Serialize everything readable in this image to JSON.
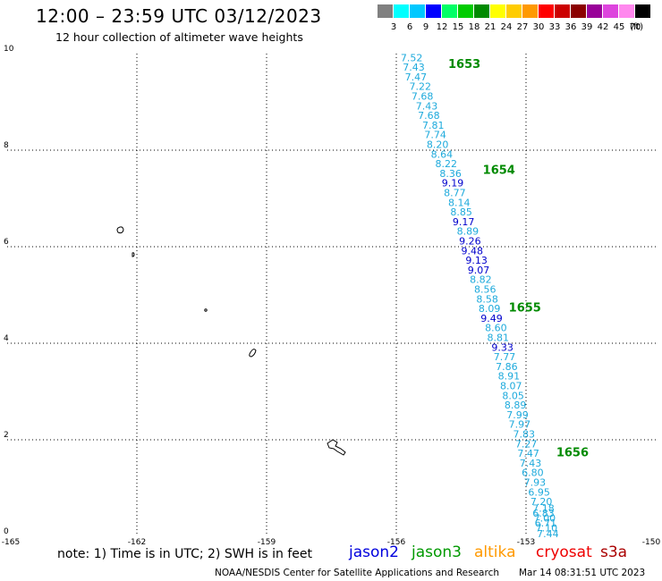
{
  "header": {
    "title": "12:00 – 23:59 UTC 03/12/2023",
    "subtitle": "12 hour collection of altimeter wave heights"
  },
  "legend": {
    "unit": "(ft)",
    "levels": [
      {
        "label": "3",
        "color": "#808080"
      },
      {
        "label": "6",
        "color": "#00ffff"
      },
      {
        "label": "9",
        "color": "#00c8ff"
      },
      {
        "label": "12",
        "color": "#0000ff"
      },
      {
        "label": "15",
        "color": "#00ff66"
      },
      {
        "label": "18",
        "color": "#00cc00"
      },
      {
        "label": "21",
        "color": "#008a00"
      },
      {
        "label": "24",
        "color": "#ffff00"
      },
      {
        "label": "27",
        "color": "#ffcc00"
      },
      {
        "label": "30",
        "color": "#ff9900"
      },
      {
        "label": "33",
        "color": "#ff0000"
      },
      {
        "label": "36",
        "color": "#cc0000"
      },
      {
        "label": "39",
        "color": "#8b0000"
      },
      {
        "label": "42",
        "color": "#990099"
      },
      {
        "label": "45",
        "color": "#dd44dd"
      },
      {
        "label": "70",
        "color": "#ff88ee"
      },
      {
        "label": "",
        "color": "#000000"
      }
    ]
  },
  "axes": {
    "lon_ticks": [
      "-165",
      "-162",
      "-159",
      "-156",
      "-153",
      "-150"
    ],
    "lat_ticks": [
      "10",
      "8",
      "6",
      "4",
      "2",
      "0"
    ],
    "lon_range": [
      -165,
      -150
    ],
    "lat_range": [
      0,
      10
    ]
  },
  "track": {
    "times": [
      {
        "label": "1653",
        "lon": -154.8,
        "lat": 9.8
      },
      {
        "label": "1654",
        "lon": -154.0,
        "lat": 7.6
      },
      {
        "label": "1655",
        "lon": -153.4,
        "lat": 4.75
      },
      {
        "label": "1656",
        "lon": -152.3,
        "lat": 1.75
      }
    ],
    "colors": {
      "c": "#1eaadc",
      "b": "#0000cc"
    },
    "points": [
      {
        "v": "7.52",
        "lon": -155.9,
        "lat": 9.92,
        "c": "c"
      },
      {
        "v": "7.43",
        "lon": -155.85,
        "lat": 9.72,
        "c": "c"
      },
      {
        "v": "7.47",
        "lon": -155.8,
        "lat": 9.52,
        "c": "c"
      },
      {
        "v": "7.22",
        "lon": -155.7,
        "lat": 9.32,
        "c": "c"
      },
      {
        "v": "7.68",
        "lon": -155.65,
        "lat": 9.12,
        "c": "c"
      },
      {
        "v": "7.43",
        "lon": -155.55,
        "lat": 8.92,
        "c": "c"
      },
      {
        "v": "7.68",
        "lon": -155.5,
        "lat": 8.72,
        "c": "c"
      },
      {
        "v": "7.81",
        "lon": -155.4,
        "lat": 8.52,
        "c": "c"
      },
      {
        "v": "7.74",
        "lon": -155.35,
        "lat": 8.32,
        "c": "c"
      },
      {
        "v": "8.20",
        "lon": -155.3,
        "lat": 8.12,
        "c": "c"
      },
      {
        "v": "8.64",
        "lon": -155.2,
        "lat": 7.92,
        "c": "c"
      },
      {
        "v": "8.22",
        "lon": -155.1,
        "lat": 7.72,
        "c": "c"
      },
      {
        "v": "8.36",
        "lon": -155.0,
        "lat": 7.52,
        "c": "c"
      },
      {
        "v": "9.19",
        "lon": -154.95,
        "lat": 7.32,
        "c": "b"
      },
      {
        "v": "8.77",
        "lon": -154.9,
        "lat": 7.12,
        "c": "c"
      },
      {
        "v": "8.14",
        "lon": -154.8,
        "lat": 6.92,
        "c": "c"
      },
      {
        "v": "8.85",
        "lon": -154.75,
        "lat": 6.72,
        "c": "c"
      },
      {
        "v": "9.17",
        "lon": -154.7,
        "lat": 6.52,
        "c": "b"
      },
      {
        "v": "8.89",
        "lon": -154.6,
        "lat": 6.32,
        "c": "c"
      },
      {
        "v": "9.26",
        "lon": -154.55,
        "lat": 6.12,
        "c": "b"
      },
      {
        "v": "9.48",
        "lon": -154.5,
        "lat": 5.92,
        "c": "b"
      },
      {
        "v": "9.13",
        "lon": -154.4,
        "lat": 5.72,
        "c": "b"
      },
      {
        "v": "9.07",
        "lon": -154.35,
        "lat": 5.52,
        "c": "b"
      },
      {
        "v": "8.82",
        "lon": -154.3,
        "lat": 5.32,
        "c": "c"
      },
      {
        "v": "8.56",
        "lon": -154.2,
        "lat": 5.12,
        "c": "c"
      },
      {
        "v": "8.58",
        "lon": -154.15,
        "lat": 4.92,
        "c": "c"
      },
      {
        "v": "8.09",
        "lon": -154.1,
        "lat": 4.72,
        "c": "c"
      },
      {
        "v": "9.49",
        "lon": -154.05,
        "lat": 4.52,
        "c": "b"
      },
      {
        "v": "8.60",
        "lon": -153.95,
        "lat": 4.32,
        "c": "c"
      },
      {
        "v": "8.81",
        "lon": -153.9,
        "lat": 4.12,
        "c": "c"
      },
      {
        "v": "9.33",
        "lon": -153.8,
        "lat": 3.92,
        "c": "b"
      },
      {
        "v": "7.77",
        "lon": -153.75,
        "lat": 3.72,
        "c": "c"
      },
      {
        "v": "7.86",
        "lon": -153.7,
        "lat": 3.52,
        "c": "c"
      },
      {
        "v": "8.91",
        "lon": -153.65,
        "lat": 3.32,
        "c": "c"
      },
      {
        "v": "8.07",
        "lon": -153.6,
        "lat": 3.12,
        "c": "c"
      },
      {
        "v": "8.05",
        "lon": -153.55,
        "lat": 2.92,
        "c": "c"
      },
      {
        "v": "8.89",
        "lon": -153.5,
        "lat": 2.72,
        "c": "c"
      },
      {
        "v": "7.99",
        "lon": -153.45,
        "lat": 2.52,
        "c": "c"
      },
      {
        "v": "7.97",
        "lon": -153.4,
        "lat": 2.32,
        "c": "c"
      },
      {
        "v": "7.83",
        "lon": -153.3,
        "lat": 2.12,
        "c": "c"
      },
      {
        "v": "7.27",
        "lon": -153.25,
        "lat": 1.92,
        "c": "c"
      },
      {
        "v": "7.47",
        "lon": -153.2,
        "lat": 1.72,
        "c": "c"
      },
      {
        "v": "7.43",
        "lon": -153.15,
        "lat": 1.52,
        "c": "c"
      },
      {
        "v": "6.80",
        "lon": -153.1,
        "lat": 1.32,
        "c": "c"
      },
      {
        "v": "7.93",
        "lon": -153.05,
        "lat": 1.12,
        "c": "c"
      },
      {
        "v": "6.95",
        "lon": -152.95,
        "lat": 0.92,
        "c": "c"
      },
      {
        "v": "7.20",
        "lon": -152.9,
        "lat": 0.72,
        "c": "c"
      },
      {
        "v": "7.18",
        "lon": -152.85,
        "lat": 0.58,
        "c": "c"
      },
      {
        "v": "6.83",
        "lon": -152.85,
        "lat": 0.48,
        "c": "c"
      },
      {
        "v": "7.00",
        "lon": -152.82,
        "lat": 0.38,
        "c": "c"
      },
      {
        "v": "6.71",
        "lon": -152.8,
        "lat": 0.28,
        "c": "c"
      },
      {
        "v": "7.10",
        "lon": -152.78,
        "lat": 0.18,
        "c": "c"
      },
      {
        "v": "7.44",
        "lon": -152.75,
        "lat": 0.06,
        "c": "c"
      }
    ]
  },
  "footer": {
    "note": "note: 1) Time is in UTC; 2) SWH is in feet",
    "satellites": [
      {
        "name": "jason2",
        "color": "#0000dd"
      },
      {
        "name": "jason3",
        "color": "#009900"
      },
      {
        "name": "altika",
        "color": "#ff9900"
      },
      {
        "name": "cryosat",
        "color": "#ee0000"
      },
      {
        "name": "s3a",
        "color": "#aa0000"
      }
    ],
    "credit": "NOAA/NESDIS Center for Satellite Applications and Research",
    "timestamp": "Mar 14 08:31:51 UTC 2023"
  }
}
